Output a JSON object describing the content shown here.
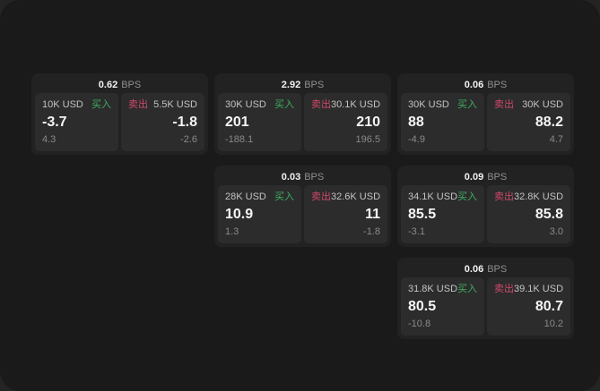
{
  "labels": {
    "bps_unit": "BPS",
    "buy": "买入",
    "sell": "卖出"
  },
  "colors": {
    "background": "#242424",
    "panel": "#1a1a1a",
    "card": "#222222",
    "tile": "#2c2c2c",
    "buy_accent": "#3fae62",
    "sell_accent": "#d0486a"
  },
  "cards": [
    {
      "bps": "0.62",
      "buy": {
        "size": "10K USD",
        "price": "-3.7",
        "delta": "4.3"
      },
      "sell": {
        "size": "5.5K USD",
        "price": "-1.8",
        "delta": "-2.6"
      }
    },
    {
      "bps": "2.92",
      "buy": {
        "size": "30K USD",
        "price": "201",
        "delta": "-188.1"
      },
      "sell": {
        "size": "30.1K USD",
        "price": "210",
        "delta": "196.5"
      }
    },
    {
      "bps": "0.06",
      "buy": {
        "size": "30K USD",
        "price": "88",
        "delta": "-4.9"
      },
      "sell": {
        "size": "30K USD",
        "price": "88.2",
        "delta": "4.7"
      }
    },
    {
      "bps": "0.03",
      "buy": {
        "size": "28K USD",
        "price": "10.9",
        "delta": "1.3"
      },
      "sell": {
        "size": "32.6K USD",
        "price": "11",
        "delta": "-1.8"
      }
    },
    {
      "bps": "0.09",
      "buy": {
        "size": "34.1K USD",
        "price": "85.5",
        "delta": "-3.1"
      },
      "sell": {
        "size": "32.8K USD",
        "price": "85.8",
        "delta": "3.0"
      }
    },
    {
      "bps": "0.06",
      "buy": {
        "size": "31.8K USD",
        "price": "80.5",
        "delta": "-10.8"
      },
      "sell": {
        "size": "39.1K USD",
        "price": "80.7",
        "delta": "10.2"
      }
    }
  ]
}
